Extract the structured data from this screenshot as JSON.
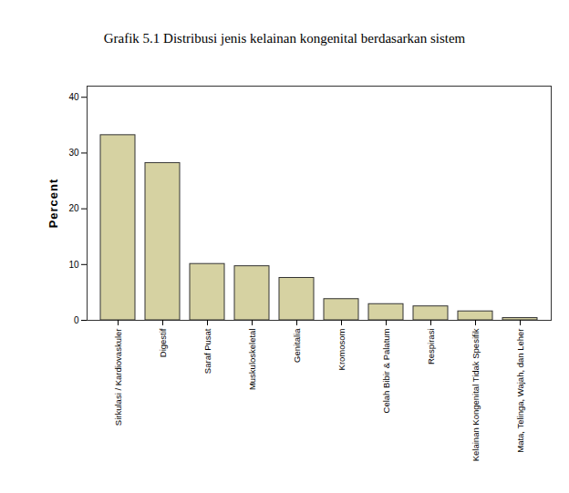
{
  "chart_data": {
    "type": "bar",
    "title": "Grafik 5.1 Distribusi jenis kelainan kongenital berdasarkan sistem",
    "ylabel": "Percent",
    "categories": [
      "Sirkulasi / Kardiovaskuler",
      "Digestif",
      "Saraf Pusat",
      "Muskuloskeletal",
      "Genitalia",
      "Kromosom",
      "Celah Bibir & Palatum",
      "Respirasi",
      "Kelainan Kongenital Tidak Spesifik",
      "Mata, Telinga, Wajah, dan Leher"
    ],
    "values": [
      33.2,
      28.2,
      10.1,
      9.7,
      7.6,
      3.8,
      2.9,
      2.5,
      1.6,
      0.4
    ],
    "color": "#d6d2a2",
    "ylim": [
      0,
      42
    ],
    "yticks": [
      0,
      10,
      20,
      30,
      40
    ],
    "grid": false
  }
}
